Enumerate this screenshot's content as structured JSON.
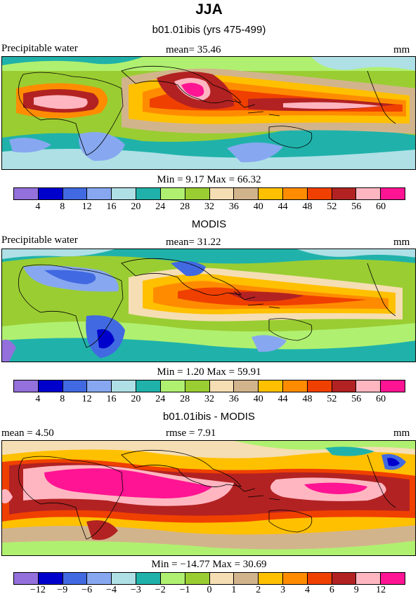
{
  "title": "JJA",
  "panels": [
    {
      "id": "model",
      "subtitle": "b01.01ibis (yrs 475-499)",
      "left_label": "Precipitable water",
      "center_label": "mean=   35.46",
      "units": "mm",
      "stats": "Min =   9.17  Max =   66.32",
      "levels": [
        "4",
        "8",
        "12",
        "16",
        "20",
        "24",
        "28",
        "32",
        "36",
        "40",
        "44",
        "48",
        "52",
        "56",
        "60"
      ],
      "colors": [
        "#9370db",
        "#0000cd",
        "#4169e1",
        "#87a8f0",
        "#afe0e6",
        "#20b2aa",
        "#b0f070",
        "#9acd32",
        "#f5deb3",
        "#d2b48c",
        "#ffc000",
        "#ff8c00",
        "#f04000",
        "#b22222",
        "#ffb6c1",
        "#ff1493"
      ]
    },
    {
      "id": "obs",
      "subtitle": "MODIS",
      "left_label": "Precipitable water",
      "center_label": "mean=   31.22",
      "units": "mm",
      "stats": "Min =   1.20  Max =   59.91",
      "levels": [
        "4",
        "8",
        "12",
        "16",
        "20",
        "24",
        "28",
        "32",
        "36",
        "40",
        "44",
        "48",
        "52",
        "56",
        "60"
      ],
      "colors": [
        "#9370db",
        "#0000cd",
        "#4169e1",
        "#87a8f0",
        "#afe0e6",
        "#20b2aa",
        "#b0f070",
        "#9acd32",
        "#f5deb3",
        "#d2b48c",
        "#ffc000",
        "#ff8c00",
        "#f04000",
        "#b22222",
        "#ffb6c1",
        "#ff1493"
      ]
    },
    {
      "id": "diff",
      "subtitle": "b01.01ibis - MODIS",
      "left_label": "mean =   4.50",
      "center_label": "rmse =   7.91",
      "units": "mm",
      "stats": "Min = −14.77  Max =   30.69",
      "levels": [
        "−12",
        "−9",
        "−6",
        "−4",
        "−3",
        "−2",
        "−1",
        "0",
        "1",
        "2",
        "3",
        "4",
        "6",
        "9",
        "12"
      ],
      "colors": [
        "#9370db",
        "#0000cd",
        "#4169e1",
        "#87a8f0",
        "#afe0e6",
        "#20b2aa",
        "#b0f070",
        "#9acd32",
        "#f5deb3",
        "#d2b48c",
        "#ffc000",
        "#ff8c00",
        "#f04000",
        "#b22222",
        "#ffb6c1",
        "#ff1493"
      ]
    }
  ],
  "chart_data": [
    {
      "type": "heatmap",
      "title": "b01.01ibis (yrs 475-499)",
      "variable": "Precipitable water",
      "units": "mm",
      "mean": 35.46,
      "min": 9.17,
      "max": 66.32,
      "contour_levels": [
        4,
        8,
        12,
        16,
        20,
        24,
        28,
        32,
        36,
        40,
        44,
        48,
        52,
        56,
        60
      ]
    },
    {
      "type": "heatmap",
      "title": "MODIS",
      "variable": "Precipitable water",
      "units": "mm",
      "mean": 31.22,
      "min": 1.2,
      "max": 59.91,
      "contour_levels": [
        4,
        8,
        12,
        16,
        20,
        24,
        28,
        32,
        36,
        40,
        44,
        48,
        52,
        56,
        60
      ]
    },
    {
      "type": "heatmap",
      "title": "b01.01ibis - MODIS",
      "units": "mm",
      "mean": 4.5,
      "rmse": 7.91,
      "min": -14.77,
      "max": 30.69,
      "contour_levels": [
        -12,
        -9,
        -6,
        -4,
        -3,
        -2,
        -1,
        0,
        1,
        2,
        3,
        4,
        6,
        9,
        12
      ]
    }
  ]
}
